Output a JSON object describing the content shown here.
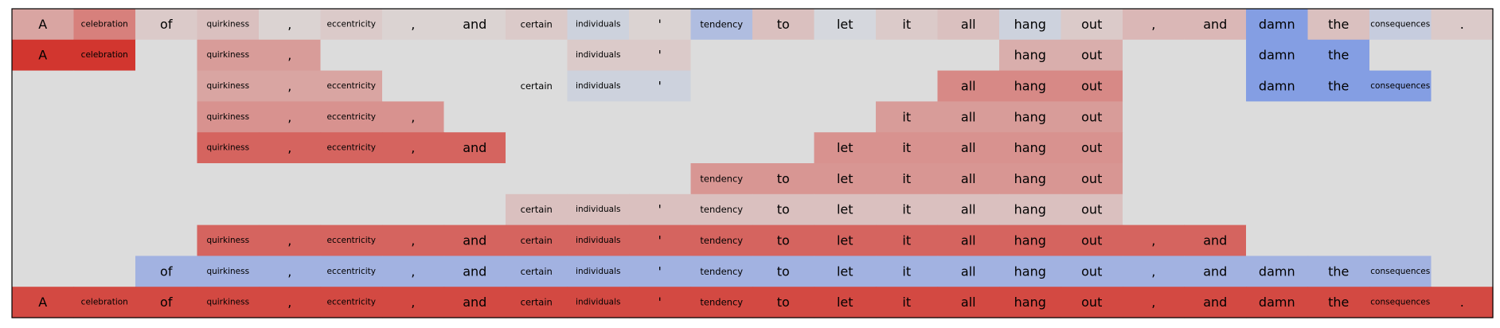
{
  "chart_data": {
    "type": "heatmap",
    "title": "",
    "tokens": [
      "A",
      "celebration",
      "of",
      "quirkiness",
      ",",
      "eccentricity",
      ",",
      "and",
      "certain",
      "individuals",
      "'",
      "tendency",
      "to",
      "let",
      "it",
      "all",
      "hang",
      "out",
      ",",
      "and",
      "damn",
      "the",
      "consequences",
      "."
    ],
    "color_scale": {
      "negative": "#4a74e8",
      "neutral": "#dcdcdc",
      "positive": "#d1241c",
      "min": -1,
      "max": 1
    },
    "rows": [
      {
        "values": [
          0.3,
          0.5,
          0.1,
          0.15,
          0.05,
          0.1,
          0.05,
          0.05,
          0.1,
          -0.1,
          0.05,
          -0.3,
          0.15,
          -0.05,
          0.1,
          0.15,
          -0.1,
          0.1,
          0.2,
          0.2,
          -0.6,
          0.15,
          -0.15,
          0.1
        ]
      },
      {
        "values": [
          0.9,
          0.9,
          0,
          0.35,
          0.35,
          0,
          0,
          0,
          0,
          0.1,
          0.1,
          0,
          0,
          0,
          0,
          0,
          0.25,
          0.25,
          0,
          0,
          -0.6,
          -0.6,
          0,
          0
        ]
      },
      {
        "values": [
          0,
          0,
          0,
          0.3,
          0.3,
          0.3,
          0,
          0,
          0,
          -0.1,
          -0.1,
          0,
          0,
          0,
          0,
          0.45,
          0.45,
          0.45,
          0,
          0,
          -0.6,
          -0.6,
          -0.6,
          0
        ]
      },
      {
        "values": [
          0,
          0,
          0,
          0.4,
          0.4,
          0.4,
          0.4,
          0,
          0,
          0,
          0,
          0,
          0,
          0,
          0.35,
          0.35,
          0.35,
          0.35,
          0,
          0,
          0,
          0,
          0,
          0
        ]
      },
      {
        "values": [
          0,
          0,
          0,
          0.65,
          0.65,
          0.65,
          0.65,
          0.65,
          0,
          0,
          0,
          0,
          0,
          0.4,
          0.4,
          0.4,
          0.4,
          0.4,
          0,
          0,
          0,
          0,
          0,
          0
        ]
      },
      {
        "values": [
          0,
          0,
          0,
          0,
          0,
          0,
          0,
          0,
          0,
          0,
          0,
          0.38,
          0.38,
          0.38,
          0.38,
          0.38,
          0.38,
          0.38,
          0,
          0,
          0,
          0,
          0,
          0
        ]
      },
      {
        "values": [
          0,
          0,
          0,
          0,
          0,
          0,
          0,
          0,
          0.15,
          0.15,
          0.15,
          0.15,
          0.15,
          0.15,
          0.15,
          0.15,
          0.15,
          0.15,
          0,
          0,
          0,
          0,
          0,
          0
        ]
      },
      {
        "values": [
          0,
          0,
          0,
          0.65,
          0.65,
          0.65,
          0.65,
          0.65,
          0.65,
          0.65,
          0.65,
          0.65,
          0.65,
          0.65,
          0.65,
          0.65,
          0.65,
          0.65,
          0.65,
          0.65,
          0,
          0,
          0,
          0
        ]
      },
      {
        "values": [
          0,
          0,
          -0.4,
          -0.4,
          -0.4,
          -0.4,
          -0.4,
          -0.4,
          -0.4,
          -0.4,
          -0.4,
          -0.4,
          -0.4,
          -0.4,
          -0.4,
          -0.4,
          -0.4,
          -0.4,
          -0.4,
          -0.4,
          -0.4,
          -0.4,
          -0.4,
          0
        ]
      },
      {
        "values": [
          0.8,
          0.8,
          0.8,
          0.8,
          0.8,
          0.8,
          0.8,
          0.8,
          0.8,
          0.8,
          0.8,
          0.8,
          0.8,
          0.8,
          0.8,
          0.8,
          0.8,
          0.8,
          0.8,
          0.8,
          0.8,
          0.8,
          0.8,
          0.8
        ]
      }
    ],
    "labels_shown": [
      [
        1,
        1,
        1,
        1,
        1,
        1,
        1,
        1,
        1,
        1,
        1,
        1,
        1,
        1,
        1,
        1,
        1,
        1,
        1,
        1,
        1,
        1,
        1,
        1
      ],
      [
        1,
        1,
        0,
        1,
        1,
        0,
        0,
        0,
        0,
        1,
        1,
        0,
        0,
        0,
        0,
        0,
        1,
        1,
        0,
        0,
        1,
        1,
        0,
        0
      ],
      [
        0,
        0,
        0,
        1,
        1,
        1,
        0,
        0,
        1,
        1,
        1,
        0,
        0,
        0,
        0,
        1,
        1,
        1,
        0,
        0,
        1,
        1,
        1,
        0
      ],
      [
        0,
        0,
        0,
        1,
        1,
        1,
        1,
        0,
        0,
        0,
        0,
        0,
        0,
        0,
        1,
        1,
        1,
        1,
        0,
        0,
        0,
        0,
        0,
        0
      ],
      [
        0,
        0,
        0,
        1,
        1,
        1,
        1,
        1,
        0,
        0,
        0,
        0,
        0,
        1,
        1,
        1,
        1,
        1,
        0,
        0,
        0,
        0,
        0,
        0
      ],
      [
        0,
        0,
        0,
        0,
        0,
        0,
        0,
        0,
        0,
        0,
        0,
        1,
        1,
        1,
        1,
        1,
        1,
        1,
        0,
        0,
        0,
        0,
        0,
        0
      ],
      [
        0,
        0,
        0,
        0,
        0,
        0,
        0,
        0,
        1,
        1,
        1,
        1,
        1,
        1,
        1,
        1,
        1,
        1,
        0,
        0,
        0,
        0,
        0,
        0
      ],
      [
        0,
        0,
        0,
        1,
        1,
        1,
        1,
        1,
        1,
        1,
        1,
        1,
        1,
        1,
        1,
        1,
        1,
        1,
        1,
        1,
        0,
        0,
        0,
        0
      ],
      [
        0,
        0,
        1,
        1,
        1,
        1,
        1,
        1,
        1,
        1,
        1,
        1,
        1,
        1,
        1,
        1,
        1,
        1,
        1,
        1,
        1,
        1,
        1,
        0
      ],
      [
        1,
        1,
        1,
        1,
        1,
        1,
        1,
        1,
        1,
        1,
        1,
        1,
        1,
        1,
        1,
        1,
        1,
        1,
        1,
        1,
        1,
        1,
        1,
        1
      ]
    ]
  }
}
